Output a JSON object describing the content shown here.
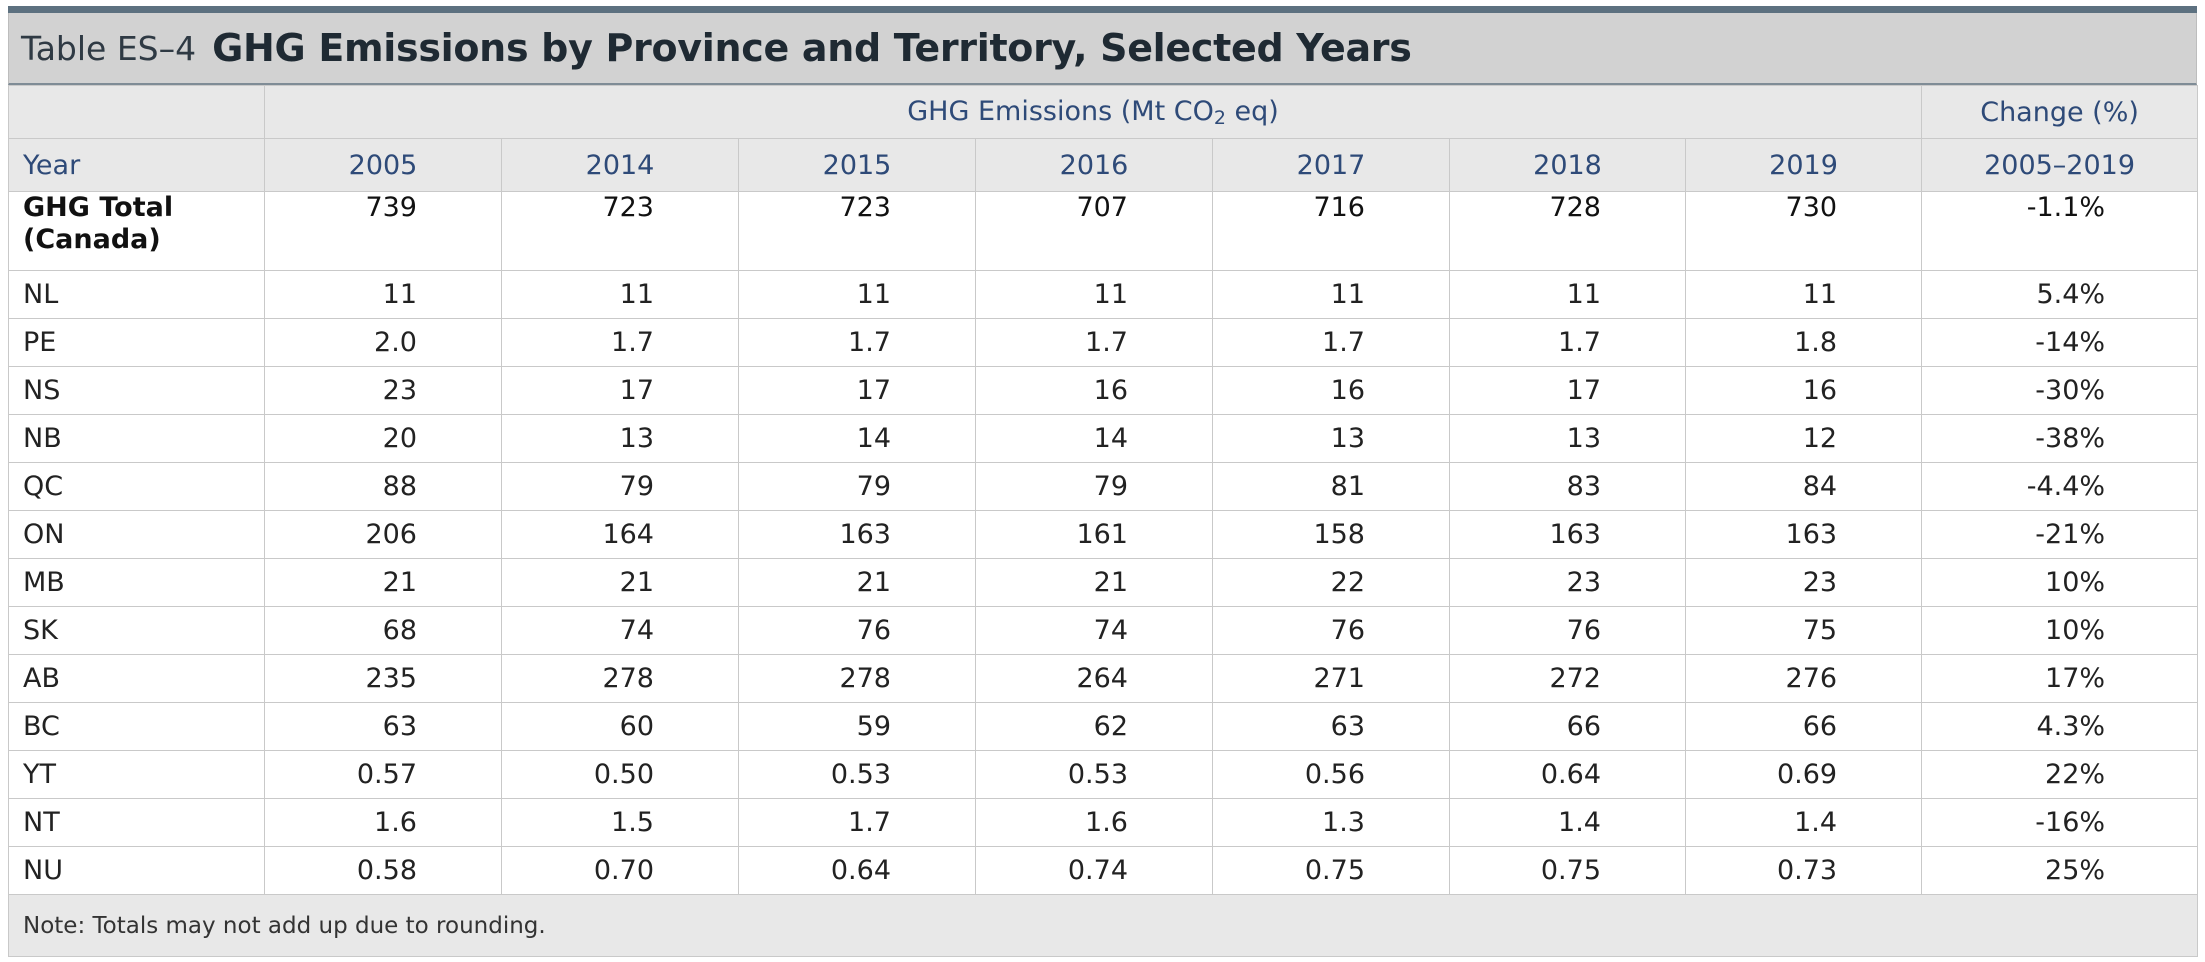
{
  "table_label": "Table ES–4",
  "table_title": "GHG Emissions by Province and Territory, Selected Years",
  "group_header": {
    "emissions_prefix": "GHG Emissions (Mt CO",
    "emissions_subscript": "2",
    "emissions_suffix": " eq)",
    "change": "Change (%)"
  },
  "columns": {
    "row_header": "Year",
    "years": [
      "2005",
      "2014",
      "2015",
      "2016",
      "2017",
      "2018",
      "2019"
    ],
    "change_period": "2005–2019"
  },
  "total_row": {
    "label_line1": "GHG Total",
    "label_line2": "(Canada)",
    "values": [
      "739",
      "723",
      "723",
      "707",
      "716",
      "728",
      "730"
    ],
    "change": "-1.1%"
  },
  "rows": [
    {
      "label": "NL",
      "values": [
        "11",
        "11",
        "11",
        "11",
        "11",
        "11",
        "11"
      ],
      "change": "5.4%"
    },
    {
      "label": "PE",
      "values": [
        "2.0",
        "1.7",
        "1.7",
        "1.7",
        "1.7",
        "1.7",
        "1.8"
      ],
      "change": "-14%"
    },
    {
      "label": "NS",
      "values": [
        "23",
        "17",
        "17",
        "16",
        "16",
        "17",
        "16"
      ],
      "change": "-30%"
    },
    {
      "label": "NB",
      "values": [
        "20",
        "13",
        "14",
        "14",
        "13",
        "13",
        "12"
      ],
      "change": "-38%"
    },
    {
      "label": "QC",
      "values": [
        "88",
        "79",
        "79",
        "79",
        "81",
        "83",
        "84"
      ],
      "change": "-4.4%"
    },
    {
      "label": "ON",
      "values": [
        "206",
        "164",
        "163",
        "161",
        "158",
        "163",
        "163"
      ],
      "change": "-21%"
    },
    {
      "label": "MB",
      "values": [
        "21",
        "21",
        "21",
        "21",
        "22",
        "23",
        "23"
      ],
      "change": "10%"
    },
    {
      "label": "SK",
      "values": [
        "68",
        "74",
        "76",
        "74",
        "76",
        "76",
        "75"
      ],
      "change": "10%"
    },
    {
      "label": "AB",
      "values": [
        "235",
        "278",
        "278",
        "264",
        "271",
        "272",
        "276"
      ],
      "change": "17%"
    },
    {
      "label": "BC",
      "values": [
        "63",
        "60",
        "59",
        "62",
        "63",
        "66",
        "66"
      ],
      "change": "4.3%"
    },
    {
      "label": "YT",
      "values": [
        "0.57",
        "0.50",
        "0.53",
        "0.53",
        "0.56",
        "0.64",
        "0.69"
      ],
      "change": "22%"
    },
    {
      "label": "NT",
      "values": [
        "1.6",
        "1.5",
        "1.7",
        "1.6",
        "1.3",
        "1.4",
        "1.4"
      ],
      "change": "-16%"
    },
    {
      "label": "NU",
      "values": [
        "0.58",
        "0.70",
        "0.64",
        "0.74",
        "0.75",
        "0.75",
        "0.73"
      ],
      "change": "25%"
    }
  ],
  "note": "Note: Totals may not add up due to rounding.",
  "colors": {
    "top_rule": "#5d7180",
    "title_band": "#d2d2d2",
    "header_band": "#e8e8e8",
    "header_text": "#2e4a78",
    "grid": "#c9c9c9"
  }
}
